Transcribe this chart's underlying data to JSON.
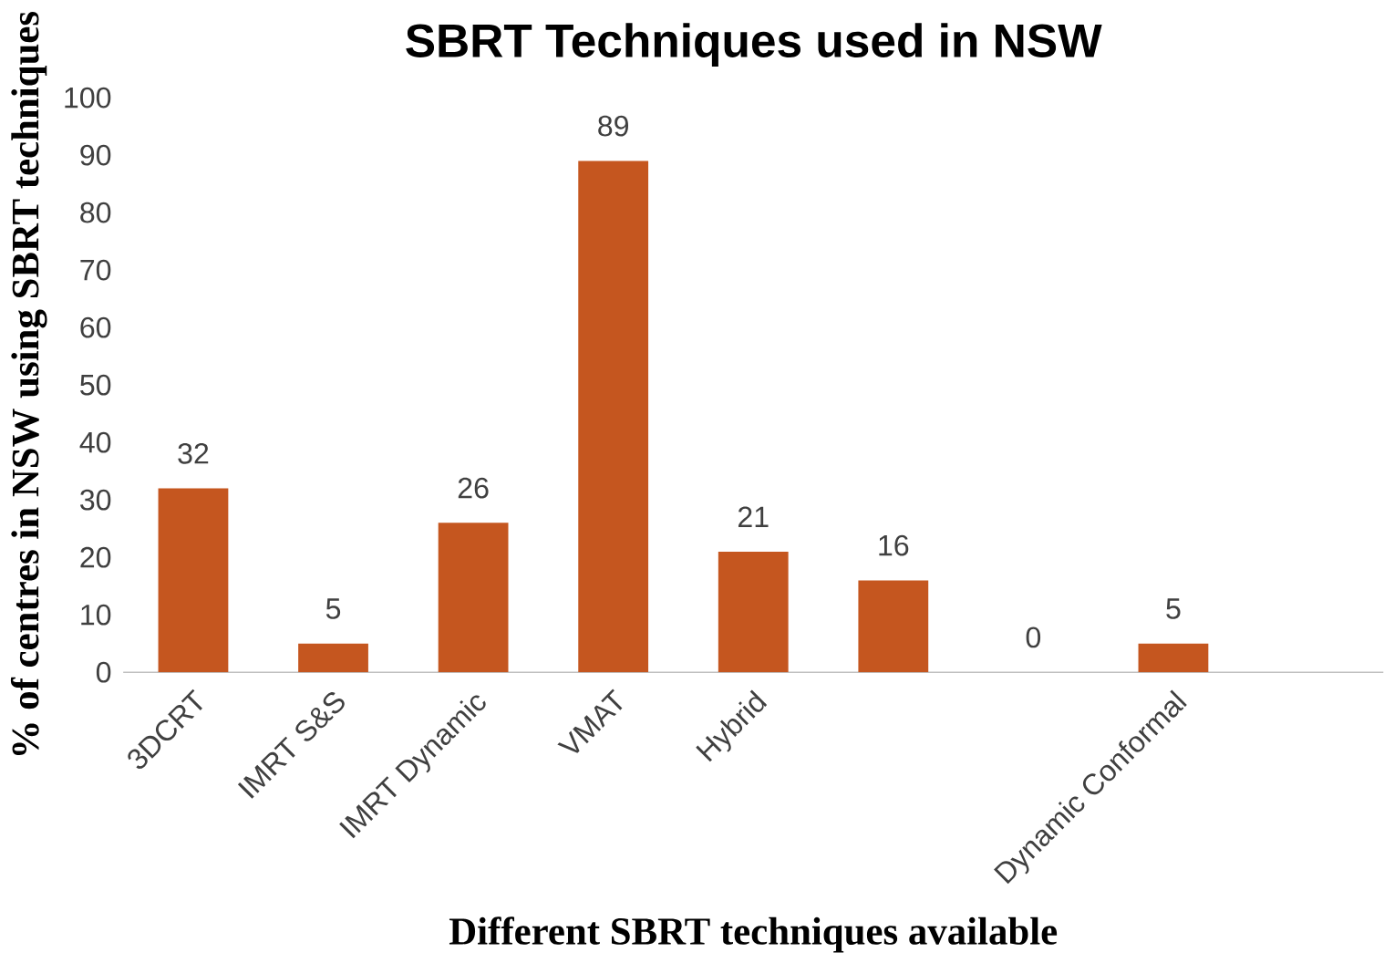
{
  "chart_data": {
    "type": "bar",
    "title": "SBRT Techniques used in NSW",
    "xlabel": "Different SBRT techniques available",
    "ylabel": "% of centres in NSW using SBRT techniques",
    "categories": [
      "3DCRT",
      "IMRT S&S",
      "IMRT Dynamic",
      "VMAT",
      "Hybrid",
      null,
      null,
      "Dynamic Conformal",
      null
    ],
    "values": [
      32,
      5,
      26,
      89,
      21,
      16,
      0,
      5,
      null
    ],
    "color": "#c5561f",
    "ylim": [
      0,
      100
    ],
    "yticks": [
      0,
      10,
      20,
      30,
      40,
      50,
      60,
      70,
      80,
      90,
      100
    ],
    "data_labels": true
  }
}
